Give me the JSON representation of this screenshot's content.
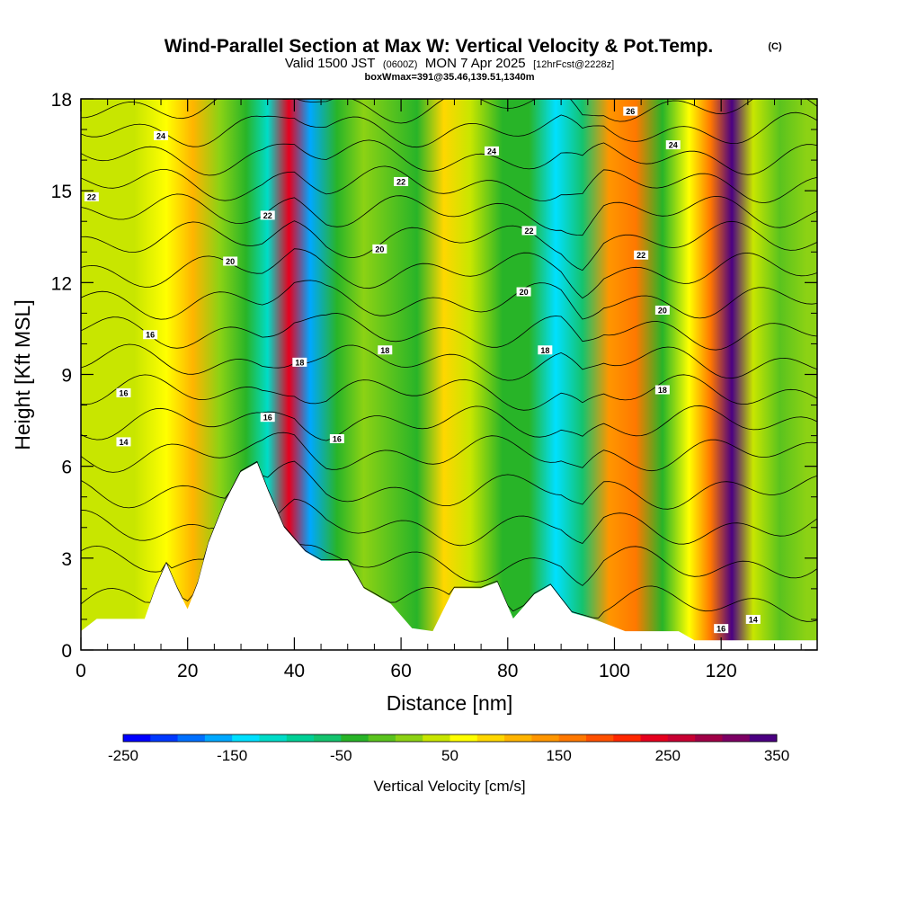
{
  "header": {
    "title": "Wind-Parallel Section at Max W: Vertical Velocity & Pot.Temp.",
    "copyright": "(C)",
    "valid_prefix": "Valid 1500 JST",
    "valid_utc": "(0600Z)",
    "valid_date": "MON 7 Apr 2025",
    "forecast_info": "[12hrFcst@2228z]",
    "box_info": "boxWmax=391@35.46,139.51,1340m"
  },
  "chart_data": {
    "type": "heatmap",
    "title": "Wind-Parallel Section at Max W: Vertical Velocity & Pot.Temp.",
    "xlabel": "Distance [nm]",
    "ylabel": "Height [Kft MSL]",
    "xlim": [
      0,
      138
    ],
    "ylim": [
      0,
      18
    ],
    "x_ticks": [
      0,
      20,
      40,
      60,
      80,
      100,
      120
    ],
    "y_ticks": [
      0,
      3,
      6,
      9,
      12,
      15,
      18
    ],
    "colorbar": {
      "label": "Vertical Velocity [cm/s]",
      "min": -250,
      "max": 350,
      "step": 25,
      "tick_values": [
        -250,
        -150,
        -50,
        50,
        150,
        250,
        350
      ],
      "tick_labels": [
        "-250",
        "-150",
        "-50",
        "50",
        "150",
        "250",
        "350"
      ],
      "colors": [
        "#0000ff",
        "#0038ff",
        "#0070ff",
        "#00a8ff",
        "#00e0ff",
        "#00dcc8",
        "#00d096",
        "#14c36e",
        "#28b428",
        "#5ac31e",
        "#8cd214",
        "#c8e600",
        "#ffff00",
        "#ffd700",
        "#ffb400",
        "#ff9600",
        "#ff7800",
        "#ff5000",
        "#ff2800",
        "#e6001e",
        "#c80032",
        "#a00046",
        "#7d0064",
        "#4b0082"
      ]
    },
    "velocity_columns": [
      {
        "x": 3,
        "w": 30
      },
      {
        "x": 10,
        "w": 40
      },
      {
        "x": 16,
        "w": 60
      },
      {
        "x": 21,
        "w": 120
      },
      {
        "x": 26,
        "w": 10
      },
      {
        "x": 31,
        "w": -30
      },
      {
        "x": 35,
        "w": -110
      },
      {
        "x": 39,
        "w": 240
      },
      {
        "x": 43,
        "w": -160
      },
      {
        "x": 48,
        "w": -40
      },
      {
        "x": 53,
        "w": 20
      },
      {
        "x": 58,
        "w": -20
      },
      {
        "x": 63,
        "w": -50
      },
      {
        "x": 68,
        "w": 90
      },
      {
        "x": 73,
        "w": 30
      },
      {
        "x": 79,
        "w": -30
      },
      {
        "x": 84,
        "w": -50
      },
      {
        "x": 89,
        "w": -130
      },
      {
        "x": 94,
        "w": -60
      },
      {
        "x": 99,
        "w": 130
      },
      {
        "x": 104,
        "w": 160
      },
      {
        "x": 109,
        "w": -40
      },
      {
        "x": 114,
        "w": 60
      },
      {
        "x": 118,
        "w": 150
      },
      {
        "x": 122,
        "w": 330
      },
      {
        "x": 126,
        "w": 40
      },
      {
        "x": 131,
        "w": -20
      },
      {
        "x": 136,
        "w": 10
      }
    ],
    "terrain": [
      {
        "x": 0,
        "h": 0.6
      },
      {
        "x": 3,
        "h": 1.0
      },
      {
        "x": 12,
        "h": 1.0
      },
      {
        "x": 14,
        "h": 2.0
      },
      {
        "x": 16,
        "h": 2.8
      },
      {
        "x": 18,
        "h": 2.0
      },
      {
        "x": 20,
        "h": 1.3
      },
      {
        "x": 22,
        "h": 2.2
      },
      {
        "x": 24,
        "h": 3.5
      },
      {
        "x": 27,
        "h": 4.8
      },
      {
        "x": 30,
        "h": 5.8
      },
      {
        "x": 33,
        "h": 6.1
      },
      {
        "x": 35,
        "h": 5.2
      },
      {
        "x": 38,
        "h": 4.0
      },
      {
        "x": 42,
        "h": 3.2
      },
      {
        "x": 45,
        "h": 2.9
      },
      {
        "x": 50,
        "h": 2.9
      },
      {
        "x": 53,
        "h": 2.0
      },
      {
        "x": 58,
        "h": 1.5
      },
      {
        "x": 62,
        "h": 0.7
      },
      {
        "x": 66,
        "h": 0.6
      },
      {
        "x": 70,
        "h": 2.0
      },
      {
        "x": 75,
        "h": 2.0
      },
      {
        "x": 78,
        "h": 2.2
      },
      {
        "x": 81,
        "h": 1.0
      },
      {
        "x": 85,
        "h": 1.8
      },
      {
        "x": 88,
        "h": 2.1
      },
      {
        "x": 92,
        "h": 1.2
      },
      {
        "x": 96,
        "h": 1.0
      },
      {
        "x": 102,
        "h": 0.6
      },
      {
        "x": 112,
        "h": 0.6
      },
      {
        "x": 115,
        "h": 0.3
      },
      {
        "x": 138,
        "h": 0.3
      }
    ],
    "isentropes": [
      {
        "h": 1.5
      },
      {
        "h": 2.8
      },
      {
        "h": 4.0
      },
      {
        "h": 5.2
      },
      {
        "h": 6.4
      },
      {
        "h": 7.4
      },
      {
        "h": 8.4
      },
      {
        "h": 9.4
      },
      {
        "h": 10.4
      },
      {
        "h": 11.4
      },
      {
        "h": 12.4
      },
      {
        "h": 13.4
      },
      {
        "h": 14.3
      },
      {
        "h": 15.2
      },
      {
        "h": 16.1
      },
      {
        "h": 17.0
      },
      {
        "h": 17.8
      }
    ],
    "contour_labels": [
      {
        "text": "24",
        "x": 15,
        "y": 16.8
      },
      {
        "text": "22",
        "x": 2,
        "y": 14.8
      },
      {
        "text": "22",
        "x": 35,
        "y": 14.2
      },
      {
        "text": "20",
        "x": 28,
        "y": 12.7
      },
      {
        "text": "16",
        "x": 13,
        "y": 10.3
      },
      {
        "text": "16",
        "x": 8,
        "y": 8.4
      },
      {
        "text": "14",
        "x": 8,
        "y": 6.8
      },
      {
        "text": "18",
        "x": 41,
        "y": 9.4
      },
      {
        "text": "16",
        "x": 35,
        "y": 7.6
      },
      {
        "text": "16",
        "x": 48,
        "y": 6.9
      },
      {
        "text": "18",
        "x": 57,
        "y": 9.8
      },
      {
        "text": "20",
        "x": 56,
        "y": 13.1
      },
      {
        "text": "22",
        "x": 60,
        "y": 15.3
      },
      {
        "text": "24",
        "x": 77,
        "y": 16.3
      },
      {
        "text": "22",
        "x": 84,
        "y": 13.7
      },
      {
        "text": "20",
        "x": 83,
        "y": 11.7
      },
      {
        "text": "18",
        "x": 87,
        "y": 9.8
      },
      {
        "text": "26",
        "x": 103,
        "y": 17.6
      },
      {
        "text": "24",
        "x": 111,
        "y": 16.5
      },
      {
        "text": "22",
        "x": 105,
        "y": 12.9
      },
      {
        "text": "20",
        "x": 109,
        "y": 11.1
      },
      {
        "text": "18",
        "x": 109,
        "y": 8.5
      },
      {
        "text": "16",
        "x": 120,
        "y": 0.7
      },
      {
        "text": "14",
        "x": 126,
        "y": 1.0
      }
    ]
  }
}
